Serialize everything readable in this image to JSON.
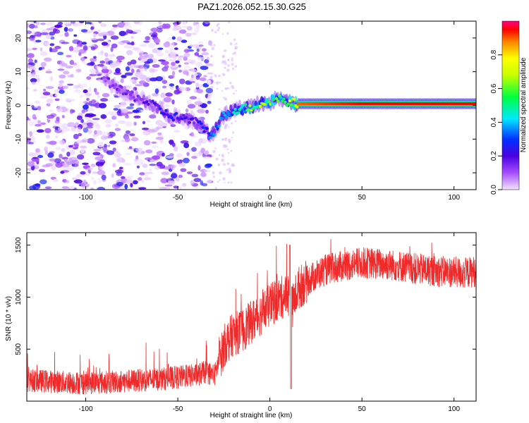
{
  "title": "PAZ1.2026.052.15.30.G25",
  "colors": {
    "snr_line": "#ee2a2a",
    "frame": "#000000",
    "scatter_low": "#e8d4fa",
    "scatter_high": "#6b10e0"
  },
  "chart_data": [
    {
      "type": "heatmap",
      "name": "spectrogram",
      "xlabel": "Height of straight line (km)",
      "ylabel": "Frequency (Hz)",
      "xlim": [
        -132,
        112
      ],
      "ylim": [
        -25,
        25
      ],
      "xticks": [
        -100,
        -50,
        0,
        50,
        100
      ],
      "yticks": [
        -20,
        -10,
        0,
        10,
        20
      ],
      "colorbar": {
        "label": "Normalized spectral amplitude",
        "range": [
          0,
          1
        ],
        "ticks": [
          0.0,
          0.2,
          0.4,
          0.6,
          0.8
        ],
        "tick_labels": [
          "0.0",
          "0.2",
          "0.4",
          "0.6",
          "0.8"
        ],
        "colormap": "rainbow (purple to red)"
      },
      "ridge_track": [
        {
          "height": -90,
          "freq": 8,
          "amp": 0.15
        },
        {
          "height": -80,
          "freq": 4,
          "amp": 0.15
        },
        {
          "height": -70,
          "freq": 2,
          "amp": 0.15
        },
        {
          "height": -60,
          "freq": -1,
          "amp": 0.2
        },
        {
          "height": -55,
          "freq": -3,
          "amp": 0.25
        },
        {
          "height": -45,
          "freq": -4,
          "amp": 0.2
        },
        {
          "height": -40,
          "freq": -5,
          "amp": 0.2
        },
        {
          "height": -35,
          "freq": -7,
          "amp": 0.25
        },
        {
          "height": -32,
          "freq": -9,
          "amp": 0.3
        },
        {
          "height": -28,
          "freq": -6,
          "amp": 0.3
        },
        {
          "height": -25,
          "freq": -3,
          "amp": 0.35
        },
        {
          "height": -20,
          "freq": -1.5,
          "amp": 0.4
        },
        {
          "height": -15,
          "freq": -1,
          "amp": 0.45
        },
        {
          "height": -10,
          "freq": -0.5,
          "amp": 0.55
        },
        {
          "height": -5,
          "freq": 0.5,
          "amp": 0.6
        },
        {
          "height": 0,
          "freq": 1,
          "amp": 0.65
        },
        {
          "height": 5,
          "freq": 2,
          "amp": 0.5
        },
        {
          "height": 10,
          "freq": 1,
          "amp": 0.6
        },
        {
          "height": 15,
          "freq": 0.5,
          "amp": 0.9
        },
        {
          "height": 50,
          "freq": 0.5,
          "amp": 0.95
        },
        {
          "height": 112,
          "freq": 0.5,
          "amp": 0.95
        }
      ]
    },
    {
      "type": "line",
      "name": "snr",
      "xlabel": "Height of straight line (km)",
      "ylabel": "SNR (10 * v/v)",
      "xlim": [
        -132,
        112
      ],
      "ylim": [
        0,
        1620
      ],
      "xticks": [
        -100,
        -50,
        0,
        50,
        100
      ],
      "yticks": [
        500,
        1000,
        1500
      ],
      "series": [
        {
          "name": "SNR",
          "x": [
            -132,
            -120,
            -110,
            -100,
            -90,
            -80,
            -70,
            -60,
            -50,
            -40,
            -35,
            -30,
            -27,
            -24,
            -20,
            -15,
            -10,
            -5,
            0,
            5,
            10,
            12,
            15,
            20,
            25,
            30,
            40,
            50,
            60,
            70,
            80,
            90,
            100,
            105,
            112
          ],
          "y": [
            200,
            190,
            180,
            175,
            180,
            190,
            200,
            210,
            230,
            250,
            280,
            250,
            420,
            560,
            640,
            680,
            760,
            840,
            920,
            980,
            1030,
            900,
            1080,
            1150,
            1210,
            1260,
            1300,
            1330,
            1320,
            1300,
            1270,
            1250,
            1240,
            1230,
            1250
          ]
        }
      ]
    }
  ]
}
